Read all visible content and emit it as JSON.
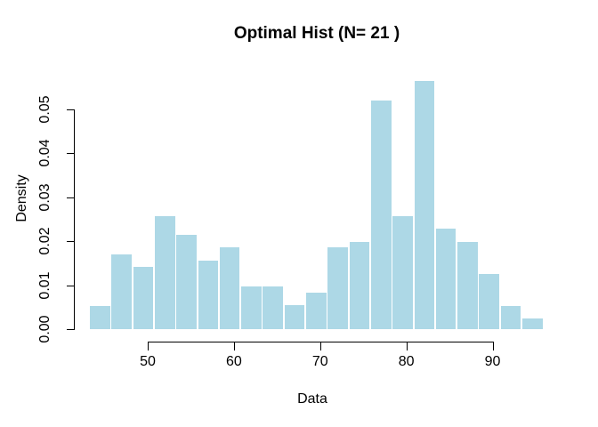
{
  "chart_data": {
    "type": "bar",
    "subtype": "histogram",
    "title": "Optimal Hist (N= 21 )",
    "xlabel": "Data",
    "ylabel": "Density",
    "n_bins": 21,
    "bin_start": 43.2,
    "bin_width": 2.51,
    "densities": [
      0.0055,
      0.0172,
      0.0143,
      0.0259,
      0.0216,
      0.0158,
      0.0187,
      0.0099,
      0.0099,
      0.0057,
      0.0084,
      0.0187,
      0.02,
      0.0522,
      0.0258,
      0.0566,
      0.0231,
      0.0201,
      0.0128,
      0.0055,
      0.0027
    ],
    "x_ticks": [
      50,
      60,
      70,
      80,
      90
    ],
    "x_tick_labels": [
      "50",
      "60",
      "70",
      "80",
      "90"
    ],
    "y_ticks": [
      0.0,
      0.01,
      0.02,
      0.03,
      0.04,
      0.05
    ],
    "y_tick_labels": [
      "0.00",
      "0.01",
      "0.02",
      "0.03",
      "0.04",
      "0.05"
    ],
    "xlim": [
      41.3,
      97.5
    ],
    "ylim": [
      0,
      0.058
    ],
    "grid": false,
    "legend": false,
    "bar_fill": "#ADD8E6",
    "bar_border": "#FFFFFF",
    "axis_color": "#000000",
    "background": "#FFFFFF"
  }
}
